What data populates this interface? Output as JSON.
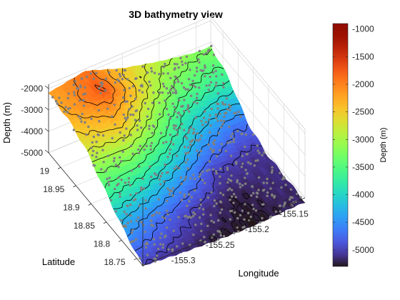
{
  "chart_data": {
    "type": "surface",
    "title": "3D bathymetry view",
    "xlabel": "Longitude",
    "ylabel": "Latitude",
    "zlabel": "Depth (m)",
    "colorbar_label": "Depth (m)",
    "colormap": "turbo",
    "xlim": [
      -155.35,
      -155.13
    ],
    "ylim": [
      18.73,
      19.04
    ],
    "zlim": [
      -5000,
      -1800
    ],
    "clim": [
      -5300,
      -900
    ],
    "x_ticks": [
      -155.3,
      -155.25,
      -155.2,
      -155.15
    ],
    "y_ticks": [
      18.75,
      18.8,
      18.85,
      18.9,
      18.95,
      19
    ],
    "z_ticks": [
      -5000,
      -4000,
      -3000,
      -2000
    ],
    "colorbar_ticks": [
      -5000,
      -4500,
      -4000,
      -3500,
      -3000,
      -2500,
      -2000,
      -1500,
      -1000
    ],
    "contour_interval": 250,
    "contour_color": "#000000",
    "point_color": "#808080",
    "surface": {
      "lon": [
        -155.35,
        -155.3,
        -155.25,
        -155.2,
        -155.15
      ],
      "lat": [
        18.73,
        18.8,
        18.86,
        18.92,
        18.98,
        19.04
      ],
      "depth": [
        [
          -5000,
          -5150,
          -5250,
          -5300,
          -5200
        ],
        [
          -4300,
          -4700,
          -5050,
          -5250,
          -5150
        ],
        [
          -3500,
          -3700,
          -4300,
          -5000,
          -5100
        ],
        [
          -2700,
          -2500,
          -3300,
          -4200,
          -4700
        ],
        [
          -2300,
          -1700,
          -2600,
          -3400,
          -3700
        ],
        [
          -2200,
          -1900,
          -2500,
          -2900,
          -3200
        ]
      ]
    }
  }
}
